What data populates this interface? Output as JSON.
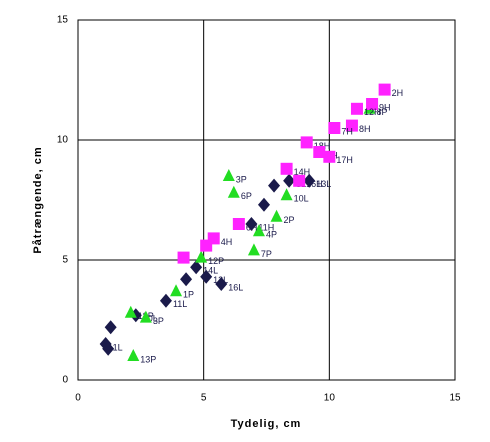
{
  "chart_data": {
    "type": "scatter",
    "x_label": "Tydelig, cm",
    "y_label": "Påtrængende, cm",
    "xlim": [
      0,
      15
    ],
    "ylim": [
      0,
      15
    ],
    "xticks": [
      0,
      5,
      10,
      15
    ],
    "yticks": [
      0,
      5,
      10,
      15
    ],
    "grid": true,
    "series": [
      {
        "marker": "diamond",
        "color": "#1a1a4a",
        "x": [
          7.4,
          7.8,
          8.4,
          9.2,
          6.9,
          4.7,
          5.1,
          5.7,
          4.3,
          3.5,
          2.3,
          1.3,
          1.1,
          1.2
        ],
        "values": [
          7.3,
          8.1,
          8.3,
          8.3,
          6.5,
          4.7,
          4.3,
          4.0,
          4.2,
          3.3,
          2.7,
          2.2,
          1.5,
          1.3
        ],
        "labels": [
          null,
          null,
          "5L",
          "13L",
          "11H",
          "14L",
          "12L",
          "16L",
          null,
          "11L",
          "10L",
          null,
          "1L",
          null
        ]
      },
      {
        "marker": "triangle",
        "color": "#22dd22",
        "x": [
          6.0,
          6.2,
          8.3,
          7.9,
          7.2,
          7.0,
          4.9,
          3.9,
          2.1,
          2.7,
          2.2,
          11.6
        ],
        "values": [
          8.5,
          7.8,
          7.7,
          6.8,
          6.2,
          5.4,
          5.1,
          3.7,
          2.8,
          2.6,
          1.0,
          11.3
        ],
        "labels": [
          "3P",
          "6P",
          "10L",
          "2P",
          "4P",
          "7P",
          "12P",
          "1P",
          "18P",
          "3P",
          "13P",
          "8P"
        ]
      },
      {
        "marker": "square",
        "color": "#ff22ff",
        "x": [
          12.2,
          11.7,
          11.1,
          10.9,
          10.2,
          9.1,
          9.6,
          10.0,
          8.3,
          8.8,
          6.4,
          5.4,
          5.1,
          4.2
        ],
        "values": [
          12.1,
          11.5,
          11.3,
          10.6,
          10.5,
          9.9,
          9.5,
          9.3,
          8.8,
          8.3,
          6.5,
          5.9,
          5.6,
          5.1
        ],
        "labels": [
          "2H",
          "9H",
          "12H",
          "8H",
          "7H",
          "18H",
          "5H",
          "17H",
          "14H",
          "16H",
          "6H",
          "4H",
          null,
          null
        ]
      }
    ]
  }
}
